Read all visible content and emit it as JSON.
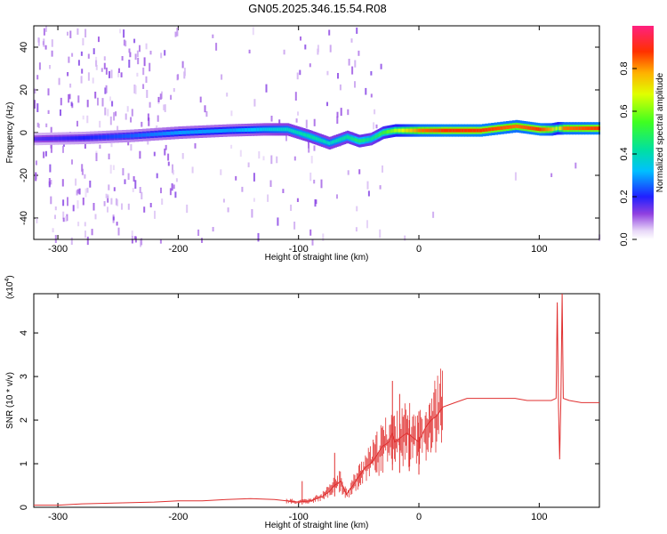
{
  "title": "GN05.2025.346.15.54.R08",
  "chart_data": [
    {
      "type": "heatmap",
      "name": "spectrogram",
      "xlabel": "Height of straight line (km)",
      "ylabel": "Frequency (Hz)",
      "xlim": [
        -320,
        150
      ],
      "ylim": [
        -50,
        50
      ],
      "xticks": [
        -300,
        -200,
        -100,
        0,
        100
      ],
      "yticks": [
        -40,
        -20,
        0,
        20,
        40
      ],
      "xtick_labels": [
        "-300",
        "-200",
        "-100",
        "0",
        "100"
      ],
      "ytick_labels": [
        "-40",
        "-20",
        "0",
        "20",
        "40"
      ],
      "colorbar": {
        "label": "Normalized spectral amplitude",
        "range": [
          0,
          1
        ],
        "ticks": [
          0.0,
          0.2,
          0.4,
          0.6,
          0.8
        ],
        "tick_labels": [
          "0.0",
          "0.2",
          "0.4",
          "0.6",
          "0.8"
        ]
      },
      "ridge": {
        "x": [
          -320,
          -280,
          -240,
          -200,
          -160,
          -130,
          -110,
          -90,
          -75,
          -60,
          -50,
          -40,
          -30,
          -20,
          -10,
          0,
          20,
          50,
          80,
          100,
          110,
          115,
          120,
          150
        ],
        "freq": [
          -3,
          -2.5,
          -1.5,
          0,
          1,
          1.5,
          1.5,
          -2,
          -5,
          -2,
          -4,
          -3,
          0,
          1,
          1,
          1,
          1,
          1,
          3,
          1.5,
          1.5,
          2,
          2,
          2
        ],
        "amplitude": [
          0.2,
          0.25,
          0.3,
          0.35,
          0.35,
          0.4,
          0.45,
          0.5,
          0.45,
          0.5,
          0.55,
          0.5,
          0.6,
          0.7,
          0.8,
          0.9,
          0.95,
          0.95,
          0.9,
          0.95,
          0.85,
          0.7,
          0.9,
          0.95
        ]
      }
    },
    {
      "type": "line",
      "name": "snr",
      "xlabel": "Height of straight line (km)",
      "ylabel": "SNR (10 * v/v)",
      "y_multiplier_label": "(x10",
      "y_multiplier_exp": "4",
      "y_multiplier_close": ")",
      "xlim": [
        -320,
        150
      ],
      "ylim": [
        0,
        4.9
      ],
      "xticks": [
        -300,
        -200,
        -100,
        0,
        100
      ],
      "yticks": [
        0,
        1,
        2,
        3,
        4
      ],
      "xtick_labels": [
        "-300",
        "-200",
        "-100",
        "0",
        "100"
      ],
      "ytick_labels": [
        "0",
        "1",
        "2",
        "3",
        "4"
      ],
      "color": "#e03030",
      "series": [
        {
          "name": "SNR",
          "x": [
            -320,
            -300,
            -280,
            -250,
            -220,
            -200,
            -180,
            -160,
            -140,
            -120,
            -110,
            -100,
            -90,
            -80,
            -75,
            -70,
            -65,
            -60,
            -55,
            -50,
            -45,
            -40,
            -35,
            -30,
            -25,
            -22,
            -20,
            -15,
            -10,
            -5,
            0,
            5,
            10,
            15,
            20,
            30,
            40,
            50,
            60,
            70,
            80,
            90,
            100,
            105,
            110,
            114,
            115,
            116,
            117,
            118,
            119,
            120,
            125,
            135,
            150
          ],
          "y": [
            0.05,
            0.05,
            0.08,
            0.1,
            0.12,
            0.15,
            0.15,
            0.18,
            0.2,
            0.18,
            0.15,
            0.12,
            0.15,
            0.25,
            0.35,
            0.5,
            0.6,
            0.3,
            0.5,
            0.7,
            0.9,
            1.0,
            1.2,
            1.4,
            1.5,
            1.7,
            1.5,
            1.6,
            1.7,
            1.6,
            1.5,
            1.8,
            2.0,
            2.1,
            2.3,
            2.4,
            2.5,
            2.5,
            2.5,
            2.5,
            2.5,
            2.45,
            2.45,
            2.45,
            2.45,
            2.5,
            4.7,
            2.3,
            1.1,
            2.5,
            4.9,
            2.5,
            2.45,
            2.4,
            2.4
          ]
        }
      ],
      "spikes": [
        {
          "x": -97,
          "y": 0.6
        },
        {
          "x": -70,
          "y": 1.25
        },
        {
          "x": -22,
          "y": 2.9
        },
        {
          "x": -16,
          "y": 2.6
        },
        {
          "x": -8,
          "y": 2.0
        },
        {
          "x": 0,
          "y": 2.2
        }
      ]
    }
  ]
}
